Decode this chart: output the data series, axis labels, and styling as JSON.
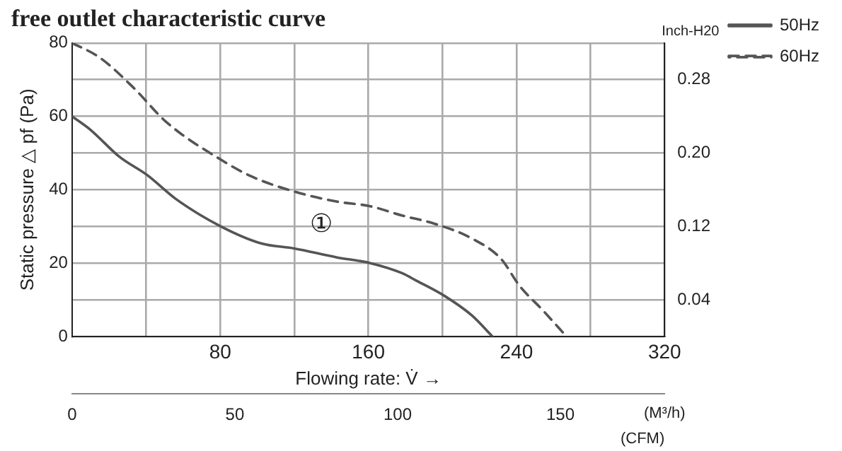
{
  "chart_data": {
    "type": "line",
    "title": "free outlet characteristic curve",
    "xlabel": "Flowing rate: V̇ →",
    "ylabel": "Static pressure △ pf (Pa)",
    "y2label": "Inch-H20",
    "x2label": "(CFM)",
    "annotations": [
      "(M³/h)",
      "①"
    ],
    "series": [
      {
        "name": "50Hz",
        "color": "#555555",
        "line_style": "solid",
        "x": [
          0,
          10,
          25.5,
          40.8,
          56,
          80,
          102,
          120,
          142.7,
          161,
          178,
          186,
          201,
          216,
          227
        ],
        "values": [
          60,
          56.3,
          49,
          43.9,
          37.5,
          30.1,
          25.4,
          24,
          21.6,
          20,
          17.3,
          15.2,
          11.1,
          5.7,
          0
        ]
      },
      {
        "name": "60Hz",
        "color": "#555555",
        "line_style": "dashed",
        "x": [
          0,
          15,
          33,
          51,
          80,
          97,
          120,
          142.7,
          161,
          178,
          196,
          216,
          231.6,
          241.7,
          254.5,
          267
        ],
        "values": [
          80,
          76,
          67.9,
          58.4,
          48.3,
          43.6,
          39.5,
          36.8,
          35.5,
          33,
          30.7,
          26.7,
          21.2,
          13.8,
          7,
          0
        ]
      }
    ],
    "xlim": [
      0,
      320
    ],
    "xticks": [
      {
        "value": 40,
        "label": null
      },
      80,
      {
        "value": 120,
        "label": null
      },
      160,
      {
        "value": 200,
        "label": null
      },
      240,
      {
        "value": 280,
        "label": null
      },
      320
    ],
    "ylim": [
      0,
      80
    ],
    "yticks": [
      0,
      {
        "value": 10,
        "label": null
      },
      20,
      {
        "value": 30,
        "label": null
      },
      40,
      {
        "value": 50,
        "label": null
      },
      60,
      {
        "value": 70,
        "label": null
      },
      80
    ],
    "y2lim": [
      0,
      0.32
    ],
    "y2ticks": [
      0.04,
      0.12,
      {
        "value": 0.2,
        "label": "0.20"
      },
      0.28
    ],
    "x2lim": [
      0,
      182
    ],
    "x2ticks": [
      0,
      50,
      100,
      150
    ],
    "grid": true,
    "legend": "top right",
    "marker": "none"
  }
}
